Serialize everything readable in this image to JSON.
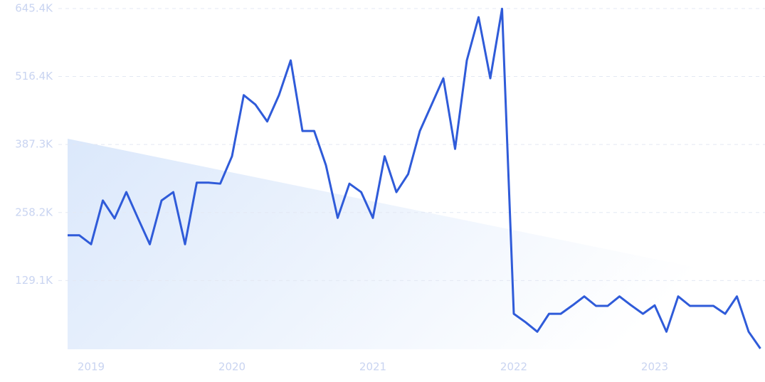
{
  "chart_data": {
    "type": "line",
    "categories": [
      null,
      null,
      "2019",
      null,
      null,
      null,
      null,
      null,
      null,
      null,
      null,
      null,
      null,
      null,
      "2020",
      null,
      null,
      null,
      null,
      null,
      null,
      null,
      null,
      null,
      null,
      null,
      "2021",
      null,
      null,
      null,
      null,
      null,
      null,
      null,
      null,
      null,
      null,
      null,
      "2022",
      null,
      null,
      null,
      null,
      null,
      null,
      null,
      null,
      null,
      null,
      null,
      "2023",
      null,
      null,
      null,
      null,
      null,
      null,
      null,
      null,
      null
    ],
    "series": [
      {
        "color": "#2f5bd9",
        "values": [
          215000,
          215000,
          198000,
          281000,
          247000,
          297000,
          247000,
          198000,
          281000,
          297000,
          198000,
          315000,
          315000,
          313000,
          365000,
          481000,
          463000,
          431000,
          481000,
          547000,
          413000,
          413000,
          348000,
          248000,
          313000,
          297000,
          248000,
          365000,
          297000,
          331000,
          413000,
          463000,
          513000,
          379000,
          547000,
          629000,
          513000,
          645000,
          66000,
          50000,
          32000,
          66000,
          66000,
          82000,
          99000,
          81000,
          81000,
          99000,
          82000,
          66000,
          82000,
          32000,
          99000,
          81000,
          81000,
          81000,
          66000,
          99000,
          32000,
          0
        ]
      }
    ],
    "ylim": [
      0,
      645400
    ],
    "yticks": [
      {
        "value": 129100,
        "label": "129.1K"
      },
      {
        "value": 258200,
        "label": "258.2K"
      },
      {
        "value": 387300,
        "label": "387.3K"
      },
      {
        "value": 516400,
        "label": "516.4K"
      },
      {
        "value": 645400,
        "label": "645.4K"
      }
    ],
    "grid": true
  }
}
